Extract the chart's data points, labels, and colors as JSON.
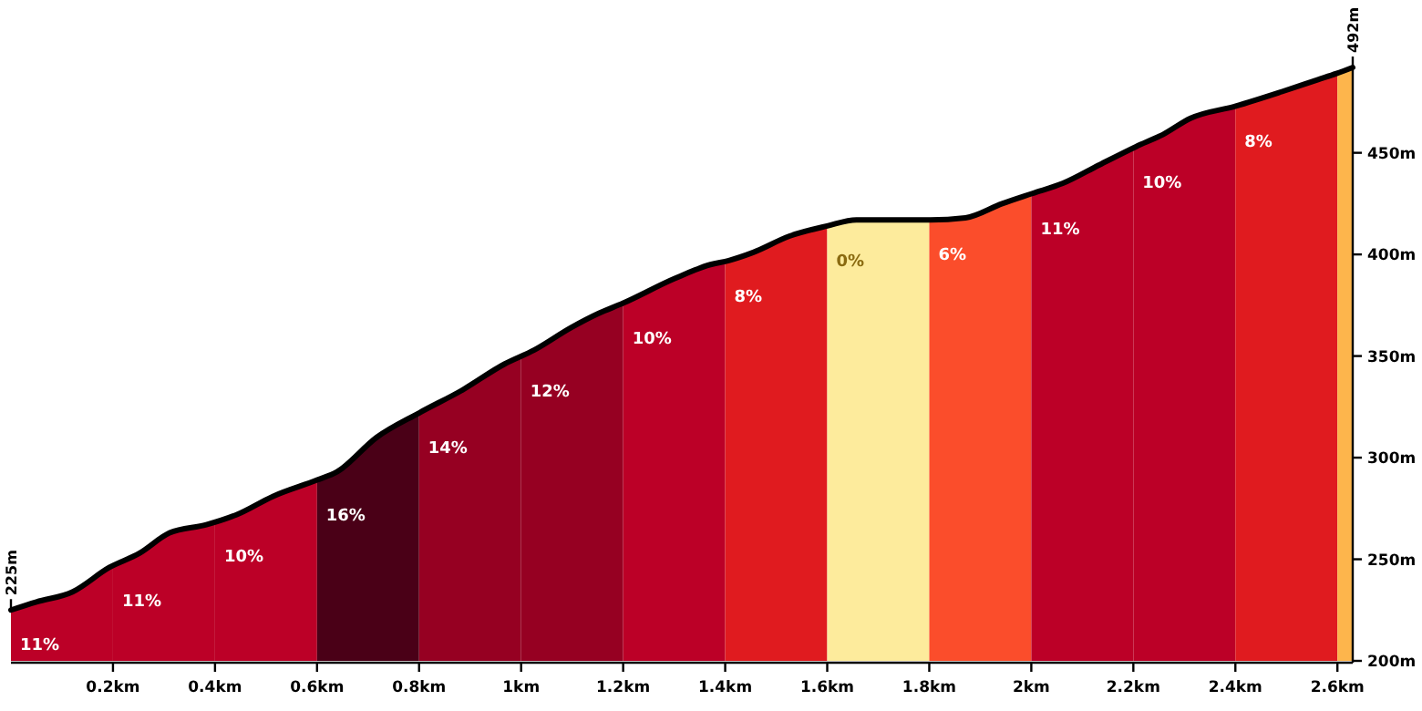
{
  "chart_data": {
    "type": "line",
    "x": [
      0,
      0.05,
      0.121,
      0.193,
      0.252,
      0.311,
      0.383,
      0.443,
      0.514,
      0.6,
      0.639,
      0.717,
      0.8,
      0.883,
      0.967,
      1.026,
      1.098,
      1.152,
      1.2,
      1.3,
      1.371,
      1.407,
      1.455,
      1.526,
      1.6,
      1.657,
      1.729,
      1.802,
      1.871,
      1.943,
      2.002,
      2.062,
      2.133,
      2.205,
      2.258,
      2.312,
      2.401,
      2.49,
      2.562,
      2.598,
      2.63
    ],
    "series": [
      {
        "color": "#000000",
        "values": [
          225,
          229,
          234,
          246,
          253,
          263,
          267,
          272,
          281,
          289,
          293,
          310,
          322,
          333,
          346,
          353,
          364,
          371,
          376,
          388,
          395,
          397,
          401,
          409,
          414,
          417,
          417,
          417,
          418,
          425,
          430,
          435,
          444,
          453,
          459,
          467,
          473,
          480,
          486,
          489,
          492
        ]
      }
    ],
    "xlim": [
      0,
      2.63
    ],
    "ylim": [
      200,
      492
    ],
    "xticks": [
      {
        "value": 0.2,
        "label": "0.2km"
      },
      {
        "value": 0.4,
        "label": "0.4km"
      },
      {
        "value": 0.6,
        "label": "0.6km"
      },
      {
        "value": 0.8,
        "label": "0.8km"
      },
      {
        "value": 1,
        "label": "1km"
      },
      {
        "value": 1.2,
        "label": "1.2km"
      },
      {
        "value": 1.4,
        "label": "1.4km"
      },
      {
        "value": 1.6,
        "label": "1.6km"
      },
      {
        "value": 1.8,
        "label": "1.8km"
      },
      {
        "value": 2,
        "label": "2km"
      },
      {
        "value": 2.2,
        "label": "2.2km"
      },
      {
        "value": 2.4,
        "label": "2.4km"
      },
      {
        "value": 2.6,
        "label": "2.6km"
      }
    ],
    "yticks": [
      {
        "value": 200,
        "label": "200m"
      },
      {
        "value": 250,
        "label": "250m"
      },
      {
        "value": 300,
        "label": "300m"
      },
      {
        "value": 350,
        "label": "350m"
      },
      {
        "value": 400,
        "label": "400m"
      },
      {
        "value": 450,
        "label": "450m"
      }
    ],
    "bands": [
      {
        "axis": "x",
        "from": 0,
        "to": 0.2,
        "label": "11%",
        "color": "#bc0027"
      },
      {
        "axis": "x",
        "from": 0.2,
        "to": 0.4,
        "label": "11%",
        "color": "#bc0027"
      },
      {
        "axis": "x",
        "from": 0.4,
        "to": 0.6,
        "label": "10%",
        "color": "#bc0027"
      },
      {
        "axis": "x",
        "from": 0.6,
        "to": 0.8,
        "label": "16%",
        "color": "#4a0017"
      },
      {
        "axis": "x",
        "from": 0.8,
        "to": 1,
        "label": "14%",
        "color": "#960022"
      },
      {
        "axis": "x",
        "from": 1,
        "to": 1.2,
        "label": "12%",
        "color": "#960022"
      },
      {
        "axis": "x",
        "from": 1.2,
        "to": 1.4,
        "label": "10%",
        "color": "#bc0027"
      },
      {
        "axis": "x",
        "from": 1.4,
        "to": 1.6,
        "label": "8%",
        "color": "#e01b1f"
      },
      {
        "axis": "x",
        "from": 1.6,
        "to": 1.8,
        "label": "0%",
        "color": "#fdeb9c"
      },
      {
        "axis": "x",
        "from": 1.8,
        "to": 2,
        "label": "6%",
        "color": "#fb4d2b"
      },
      {
        "axis": "x",
        "from": 2,
        "to": 2.2,
        "label": "11%",
        "color": "#bc0027"
      },
      {
        "axis": "x",
        "from": 2.2,
        "to": 2.4,
        "label": "10%",
        "color": "#bc0027"
      },
      {
        "axis": "x",
        "from": 2.4,
        "to": 2.6,
        "label": "8%",
        "color": "#e01b1f"
      },
      {
        "axis": "x",
        "from": 2.6,
        "to": 2.63,
        "label": null,
        "color": "#fdb54c"
      }
    ],
    "annotations": [
      {
        "text": "225m",
        "x": 0,
        "y": 225
      },
      {
        "text": "492m",
        "x": 2.63,
        "y": 492
      }
    ]
  }
}
